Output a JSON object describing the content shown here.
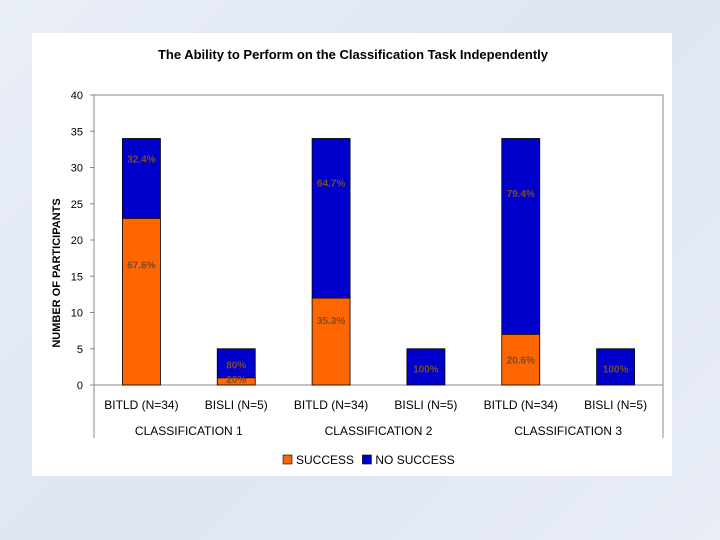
{
  "chart_data": {
    "type": "bar",
    "stacked": true,
    "title": "The Ability to Perform on the Classification Task Independently",
    "ylabel": "NUMBER OF PARTICIPANTS",
    "xlabel": "",
    "ylim": [
      0,
      40
    ],
    "yticks": [
      0,
      5,
      10,
      15,
      20,
      25,
      30,
      35,
      40
    ],
    "grid": false,
    "legend_position": "bottom",
    "categories": [
      "BITLD (N=34)",
      "BISLI (N=5)",
      "BITLD (N=34)",
      "BISLI (N=5)",
      "BITLD (N=34)",
      "BISLI (N=5)"
    ],
    "groups": [
      "CLASSIFICATION 1",
      "CLASSIFICATION 2",
      "CLASSIFICATION 3"
    ],
    "series": [
      {
        "name": "SUCCESS",
        "color": "#ff6600",
        "values": [
          23,
          1,
          12,
          0,
          7,
          0
        ],
        "labels": [
          "67.6%",
          "20%",
          "35.3%",
          "",
          "20.6%",
          ""
        ]
      },
      {
        "name": "NO SUCCESS",
        "color": "#0000cc",
        "values": [
          11,
          4,
          22,
          5,
          27,
          5
        ],
        "labels": [
          "32.4%",
          "80%",
          "64.7%",
          "100%",
          "79.4%",
          "100%"
        ]
      }
    ]
  }
}
